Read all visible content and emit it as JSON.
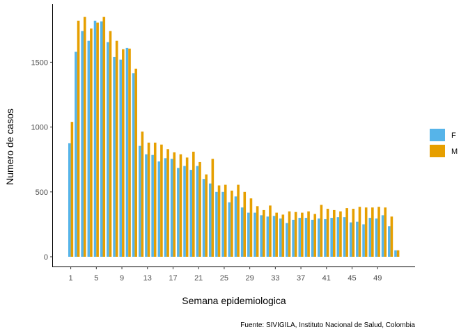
{
  "chart_data": {
    "type": "bar",
    "title": "",
    "xlabel": "Semana epidemiologica",
    "ylabel": "Numero de casos",
    "caption": "Fuente: SIVIGILA, Instituto Nacional de Salud, Colombia",
    "x_tick_labels": [
      "1",
      "5",
      "9",
      "13",
      "17",
      "21",
      "25",
      "29",
      "33",
      "37",
      "41",
      "45",
      "49"
    ],
    "y_ticks": [
      0,
      500,
      1000,
      1500
    ],
    "ylim": [
      0,
      1900
    ],
    "grid": false,
    "legend_position": "right",
    "categories": [
      1,
      2,
      3,
      4,
      5,
      6,
      7,
      8,
      9,
      10,
      11,
      12,
      13,
      14,
      15,
      16,
      17,
      18,
      19,
      20,
      21,
      22,
      23,
      24,
      25,
      26,
      27,
      28,
      29,
      30,
      31,
      32,
      33,
      34,
      35,
      36,
      37,
      38,
      39,
      40,
      41,
      42,
      43,
      44,
      45,
      46,
      47,
      48,
      49,
      50,
      51,
      52,
      53
    ],
    "series": [
      {
        "name": "F",
        "color": "#56B4E9",
        "values": [
          875,
          1580,
          1740,
          1665,
          1820,
          1815,
          1655,
          1540,
          1520,
          1610,
          1415,
          855,
          790,
          785,
          735,
          760,
          755,
          685,
          700,
          670,
          700,
          600,
          565,
          500,
          500,
          420,
          465,
          380,
          340,
          340,
          320,
          310,
          315,
          295,
          260,
          285,
          300,
          300,
          285,
          295,
          290,
          300,
          305,
          305,
          265,
          270,
          250,
          300,
          295,
          320,
          235,
          50,
          0
        ]
      },
      {
        "name": "M",
        "color": "#E69F00",
        "values": [
          1040,
          1820,
          1850,
          1760,
          1805,
          1850,
          1740,
          1665,
          1600,
          1605,
          1450,
          965,
          880,
          880,
          865,
          830,
          805,
          790,
          765,
          810,
          730,
          635,
          755,
          550,
          555,
          510,
          555,
          500,
          450,
          390,
          360,
          395,
          340,
          325,
          350,
          345,
          340,
          350,
          330,
          400,
          370,
          360,
          350,
          375,
          370,
          385,
          380,
          380,
          385,
          380,
          310,
          50,
          0
        ]
      }
    ]
  }
}
